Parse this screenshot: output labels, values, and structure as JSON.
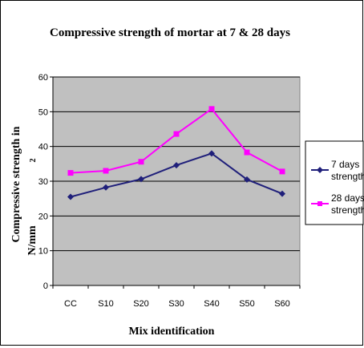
{
  "chart_data": {
    "type": "line",
    "title": "Compressive strength of mortar at 7 & 28 days",
    "xlabel": "Mix identification",
    "ylabel_line1": "Compressive  strength  in",
    "ylabel_line2": "N/mm",
    "ylabel_superscript": "2",
    "categories": [
      "CC",
      "S10",
      "S20",
      "S30",
      "S40",
      "S50",
      "S60"
    ],
    "ylim": [
      0,
      60
    ],
    "yticks": [
      0,
      10,
      20,
      30,
      40,
      50,
      60
    ],
    "grid": true,
    "legend_position": "right",
    "series": [
      {
        "name_line1": "7 days",
        "name_line2": "strength",
        "color": "#1f1f7a",
        "marker": "diamond",
        "values": [
          25.5,
          28.2,
          30.6,
          34.6,
          38.0,
          30.5,
          26.4
        ]
      },
      {
        "name_line1": "28 days",
        "name_line2": "strength",
        "color": "#ff00ff",
        "marker": "square",
        "values": [
          32.4,
          33.0,
          35.6,
          43.6,
          50.8,
          38.3,
          32.8
        ]
      }
    ]
  }
}
